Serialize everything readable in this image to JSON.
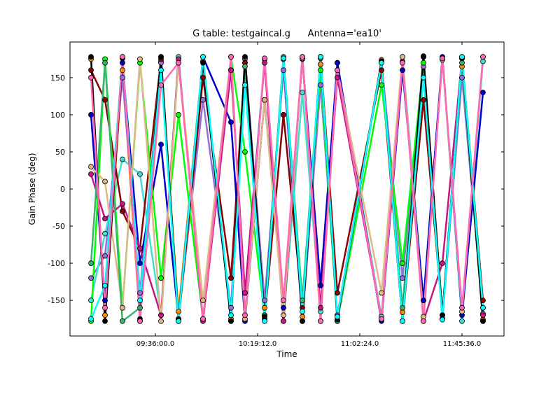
{
  "chart_data": {
    "type": "line",
    "title": "G table: testgaincal.g      Antenna='ea10'",
    "x_label": "Time",
    "y_label": "Gain Phase (deg)",
    "x": [
      32927,
      33282,
      33725,
      34169,
      34702,
      35146,
      35767,
      36477,
      36832,
      37329,
      37808,
      38288,
      38749,
      39175,
      40294,
      40827,
      41359,
      41839,
      42336,
      42868
    ],
    "xlim": [
      32394,
      43401
    ],
    "xticks": [
      {
        "value": 34560,
        "label": "09:36:00.0"
      },
      {
        "value": 37152,
        "label": "10:19:12.0"
      },
      {
        "value": 39744,
        "label": "11:02:24.0"
      },
      {
        "value": 42336,
        "label": "11:45:36.0"
      }
    ],
    "ylim": [
      -198,
      198
    ],
    "yticks": [
      -150,
      -100,
      -50,
      0,
      50,
      100,
      150
    ],
    "series": [
      {
        "color": "#ff8c00",
        "values": [
          175,
          -170,
          160,
          -178,
          172,
          -165,
          178,
          -175,
          170,
          -160,
          176,
          -172,
          168,
          -178,
          174,
          -166,
          179,
          -170,
          165,
          -176
        ]
      },
      {
        "color": "#9370db",
        "values": [
          -120,
          -90,
          150,
          -140,
          170,
          -175,
          120,
          -160,
          175,
          -150,
          160,
          -178,
          140,
          -170,
          172,
          -120,
          165,
          -175,
          150,
          -168
        ]
      },
      {
        "color": "#40e0d0",
        "values": [
          -150,
          -60,
          40,
          20,
          -170,
          178,
          -175,
          160,
          -140,
          175,
          -178,
          130,
          -165,
          170,
          -172,
          178,
          -150,
          176,
          -178,
          172
        ]
      },
      {
        "color": "#8b0000",
        "values": [
          160,
          120,
          -30,
          -80,
          175,
          -178,
          150,
          -120,
          170,
          -175,
          100,
          -160,
          178,
          -140,
          160,
          -178,
          120,
          -170,
          176,
          -150
        ]
      },
      {
        "color": "#0000cd",
        "values": [
          100,
          -150,
          170,
          -100,
          60,
          -175,
          178,
          90,
          -178,
          120,
          -160,
          175,
          -130,
          170,
          -178,
          160,
          -150,
          178,
          -170,
          130
        ]
      },
      {
        "color": "#00ff00",
        "values": [
          -178,
          175,
          -160,
          170,
          -120,
          100,
          -175,
          178,
          50,
          -170,
          175,
          -150,
          160,
          -178,
          140,
          -100,
          170,
          -175,
          178,
          -160
        ]
      },
      {
        "color": "#c71585",
        "values": [
          20,
          -40,
          -20,
          -80,
          -170,
          175,
          -178,
          160,
          -140,
          170,
          -178,
          178,
          -160,
          150,
          -175,
          172,
          -178,
          -100,
          176,
          -170
        ]
      },
      {
        "color": "#deb887",
        "values": [
          30,
          10,
          -160,
          175,
          -178,
          170,
          -150,
          178,
          -175,
          120,
          -170,
          176,
          -178,
          160,
          -140,
          178,
          -172,
          174,
          -165,
          178
        ]
      },
      {
        "color": "#3cb371",
        "values": [
          -100,
          170,
          -178,
          -160,
          178,
          -175,
          172,
          -178,
          165,
          -170,
          178,
          -150,
          176,
          -178,
          170,
          -160,
          178,
          -175,
          170,
          -178
        ]
      },
      {
        "color": "#000000",
        "values": [
          178,
          -178,
          176,
          -175,
          178,
          -176,
          170,
          -178,
          178,
          -172,
          175,
          -178,
          178,
          -176,
          172,
          -178,
          178,
          -170,
          176,
          -178
        ]
      },
      {
        "color": "#00ffff",
        "values": [
          -175,
          -130,
          178,
          -150,
          160,
          -178,
          178,
          -170,
          140,
          -178,
          176,
          -165,
          178,
          -172,
          170,
          -178,
          150,
          -176,
          178,
          -160
        ]
      },
      {
        "color": "#ff69b4",
        "values": [
          150,
          -160,
          178,
          -178,
          140,
          170,
          -175,
          178,
          -170,
          176,
          -150,
          178,
          -178,
          160,
          -175,
          170,
          -178,
          176,
          -160,
          178
        ]
      }
    ]
  }
}
